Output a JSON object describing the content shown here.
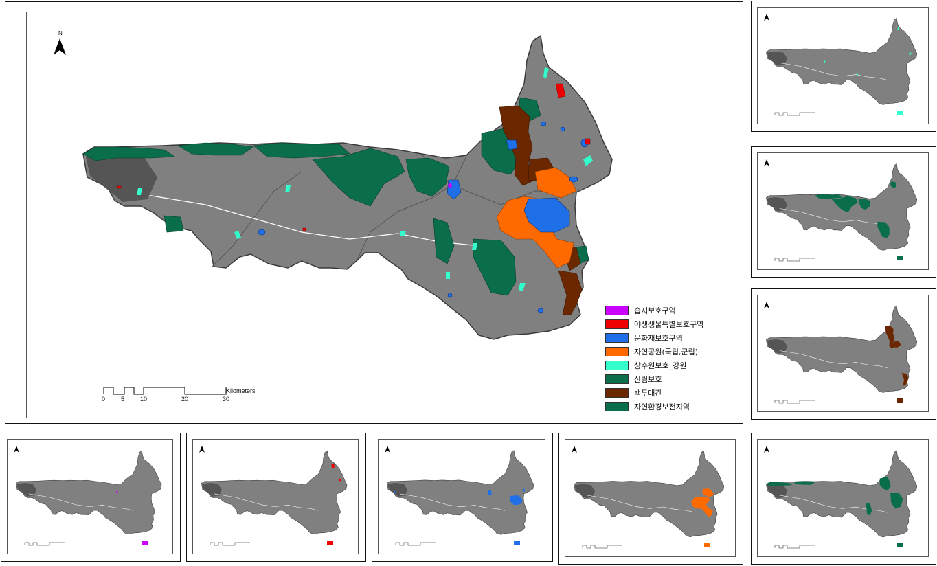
{
  "main_map": {
    "north_label": "N",
    "legend": [
      {
        "label": "습지보호구역",
        "color": "#cc00ff"
      },
      {
        "label": "야생생물특별보호구역",
        "color": "#ee0000"
      },
      {
        "label": "문화재보호구역",
        "color": "#1f6fe8"
      },
      {
        "label": "자연공원(국립,군립)",
        "color": "#ff6a00"
      },
      {
        "label": "상수원보호_강원",
        "color": "#33ffcc"
      },
      {
        "label": "산림보호",
        "color": "#0a6e4a"
      },
      {
        "label": "백두대간",
        "color": "#6b2800"
      },
      {
        "label": "자연환경보전지역",
        "color": "#0a6e4a"
      }
    ],
    "scale": {
      "ticks": [
        "0",
        "5",
        "10",
        "20",
        "30"
      ],
      "unit": "Kilometers"
    }
  },
  "colors": {
    "base": "#808080",
    "base_dark": "#555555",
    "outline": "#3a3a3a"
  },
  "thumbnails": [
    {
      "id": "water-supply",
      "layer": "상수원보호_강원",
      "color": "#33ffcc"
    },
    {
      "id": "forest",
      "layer": "산림보호",
      "color": "#0a6e4a"
    },
    {
      "id": "baekdudaegan",
      "layer": "백두대간",
      "color": "#6b2800"
    },
    {
      "id": "wetland",
      "layer": "습지보호구역",
      "color": "#cc00ff"
    },
    {
      "id": "wildlife",
      "layer": "야생생물특별보호구역",
      "color": "#ee0000"
    },
    {
      "id": "cultural",
      "layer": "문화재보호구역",
      "color": "#1f6fe8"
    },
    {
      "id": "nature-park",
      "layer": "자연공원(국립,군립)",
      "color": "#ff6a00"
    },
    {
      "id": "conservation",
      "layer": "자연환경보전지역",
      "color": "#0a6e4a"
    }
  ]
}
